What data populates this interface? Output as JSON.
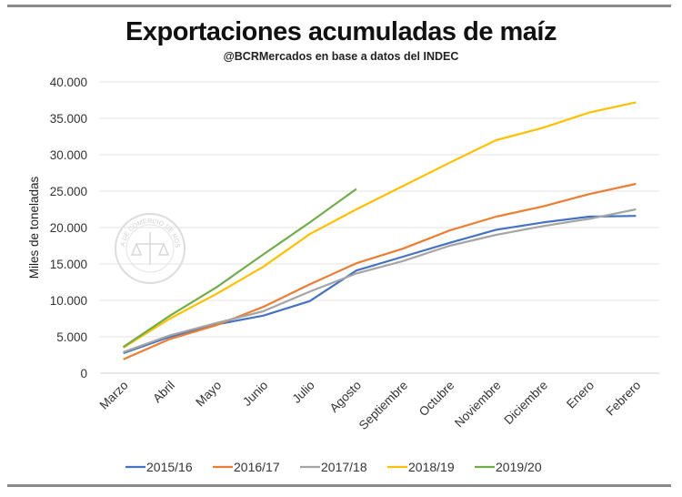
{
  "chart_data": {
    "type": "line",
    "title": "Exportaciones acumuladas de maíz",
    "subtitle": "@BCRMercados  en base a datos del INDEC",
    "xlabel": "",
    "ylabel": "Miles de toneladas",
    "ylim": [
      0,
      40000
    ],
    "yticks": [
      0,
      5000,
      10000,
      15000,
      20000,
      25000,
      30000,
      35000,
      40000
    ],
    "ytick_labels": [
      "0",
      "5.000",
      "10.000",
      "15.000",
      "20.000",
      "25.000",
      "30.000",
      "35.000",
      "40.000"
    ],
    "grid": true,
    "legend_position": "bottom",
    "watermark": "BOLSA DE COMERCIO DE ROSARIO",
    "categories": [
      "Marzo",
      "Abril",
      "Mayo",
      "Junio",
      "Julio",
      "Agosto",
      "Septiembre",
      "Octubre",
      "Noviembre",
      "Diciembre",
      "Enero",
      "Febrero"
    ],
    "series": [
      {
        "name": "2015/16",
        "color": "#4472c4",
        "values": [
          2750,
          5000,
          6700,
          7900,
          9900,
          14100,
          16000,
          17900,
          19700,
          20700,
          21500,
          21600
        ]
      },
      {
        "name": "2016/17",
        "color": "#ed7d31",
        "values": [
          1900,
          4700,
          6600,
          9100,
          12200,
          15100,
          17100,
          19600,
          21500,
          22900,
          24600,
          26000
        ]
      },
      {
        "name": "2017/18",
        "color": "#a5a5a5",
        "values": [
          2900,
          5200,
          6900,
          8500,
          11200,
          13700,
          15400,
          17500,
          19000,
          20200,
          21200,
          22500
        ]
      },
      {
        "name": "2018/19",
        "color": "#ffc000",
        "values": [
          3500,
          7500,
          10900,
          14600,
          19100,
          22500,
          25700,
          28900,
          32000,
          33700,
          35800,
          37200
        ]
      },
      {
        "name": "2019/20",
        "color": "#70ad47",
        "values": [
          3600,
          7900,
          11800,
          16300,
          20700,
          25300,
          null,
          null,
          null,
          null,
          null,
          null
        ]
      }
    ]
  }
}
